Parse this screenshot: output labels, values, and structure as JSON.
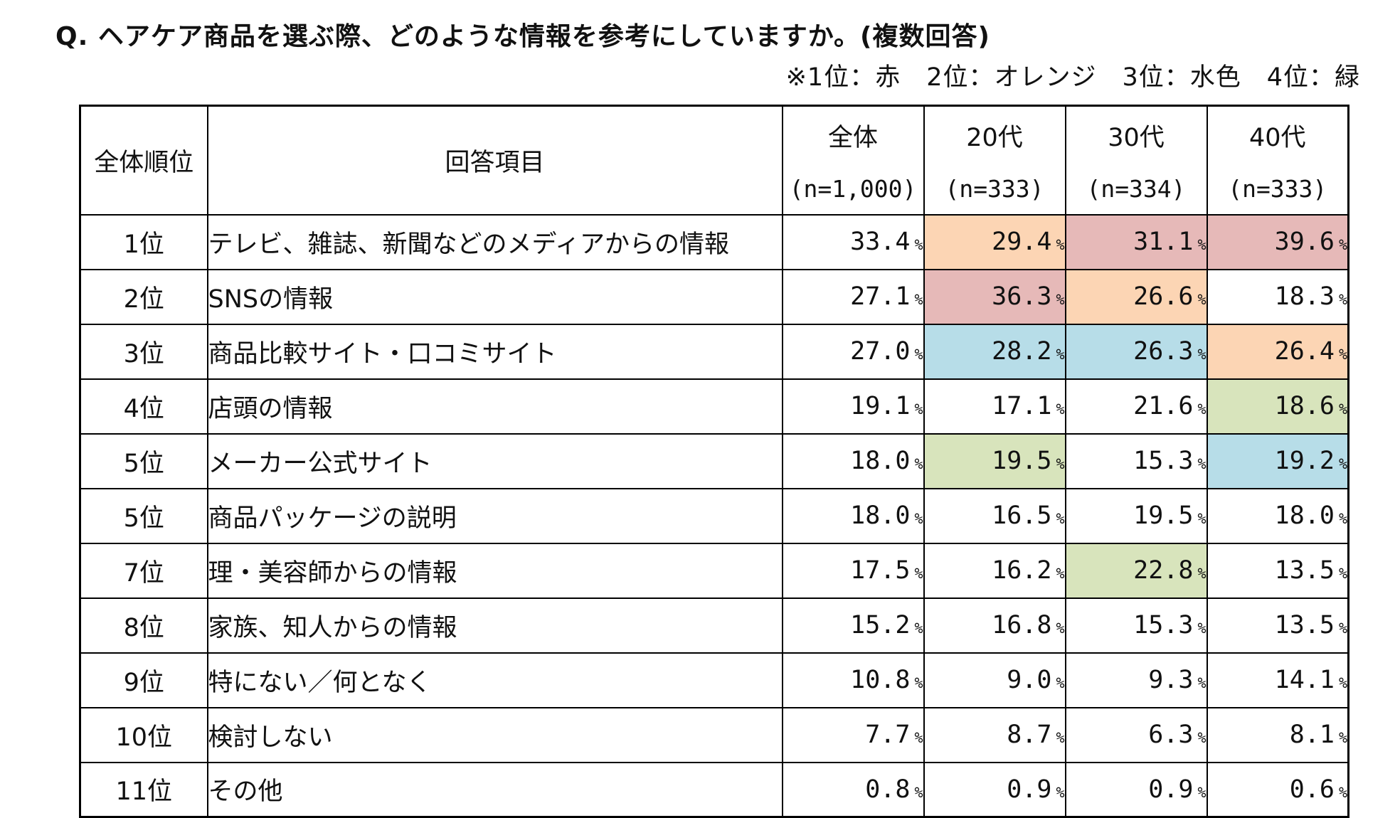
{
  "title": "Q. ヘアケア商品を選ぶ際、どのような情報を参考にしていますか。(複数回答)",
  "legend_note": "※1位：赤　2位：オレンジ　3位：水色　4位：緑",
  "colors": {
    "rank1": "#e6b9b8",
    "rank2": "#fcd5b4",
    "rank3": "#b7dde8",
    "rank4": "#d8e4bc",
    "none": "#ffffff"
  },
  "chart_data": {
    "type": "table",
    "header": {
      "rank": "全体順位",
      "item": "回答項目",
      "columns": [
        {
          "label": "全体",
          "n": "(n=1,000)"
        },
        {
          "label": "20代",
          "n": "(n=333)"
        },
        {
          "label": "30代",
          "n": "(n=334)"
        },
        {
          "label": "40代",
          "n": "(n=333)"
        }
      ]
    },
    "unit": "%",
    "rows": [
      {
        "rank": "1位",
        "item": "テレビ、雑誌、新聞などのメディアからの情報",
        "values": [
          "33.4",
          "29.4",
          "31.1",
          "39.6"
        ],
        "highlight": [
          0,
          2,
          1,
          1
        ]
      },
      {
        "rank": "2位",
        "item": "SNSの情報",
        "values": [
          "27.1",
          "36.3",
          "26.6",
          "18.3"
        ],
        "highlight": [
          0,
          1,
          2,
          0
        ]
      },
      {
        "rank": "3位",
        "item": "商品比較サイト・口コミサイト",
        "values": [
          "27.0",
          "28.2",
          "26.3",
          "26.4"
        ],
        "highlight": [
          0,
          3,
          3,
          2
        ]
      },
      {
        "rank": "4位",
        "item": "店頭の情報",
        "values": [
          "19.1",
          "17.1",
          "21.6",
          "18.6"
        ],
        "highlight": [
          0,
          0,
          0,
          4
        ]
      },
      {
        "rank": "5位",
        "item": "メーカー公式サイト",
        "values": [
          "18.0",
          "19.5",
          "15.3",
          "19.2"
        ],
        "highlight": [
          0,
          4,
          0,
          3
        ]
      },
      {
        "rank": "5位",
        "item": "商品パッケージの説明",
        "values": [
          "18.0",
          "16.5",
          "19.5",
          "18.0"
        ],
        "highlight": [
          0,
          0,
          0,
          0
        ]
      },
      {
        "rank": "7位",
        "item": "理・美容師からの情報",
        "values": [
          "17.5",
          "16.2",
          "22.8",
          "13.5"
        ],
        "highlight": [
          0,
          0,
          4,
          0
        ]
      },
      {
        "rank": "8位",
        "item": "家族、知人からの情報",
        "values": [
          "15.2",
          "16.8",
          "15.3",
          "13.5"
        ],
        "highlight": [
          0,
          0,
          0,
          0
        ]
      },
      {
        "rank": "9位",
        "item": "特にない／何となく",
        "values": [
          "10.8",
          "9.0",
          "9.3",
          "14.1"
        ],
        "highlight": [
          0,
          0,
          0,
          0
        ]
      },
      {
        "rank": "10位",
        "item": "検討しない",
        "values": [
          "7.7",
          "8.7",
          "6.3",
          "8.1"
        ],
        "highlight": [
          0,
          0,
          0,
          0
        ]
      },
      {
        "rank": "11位",
        "item": "その他",
        "values": [
          "0.8",
          "0.9",
          "0.9",
          "0.6"
        ],
        "highlight": [
          0,
          0,
          0,
          0
        ]
      }
    ]
  }
}
